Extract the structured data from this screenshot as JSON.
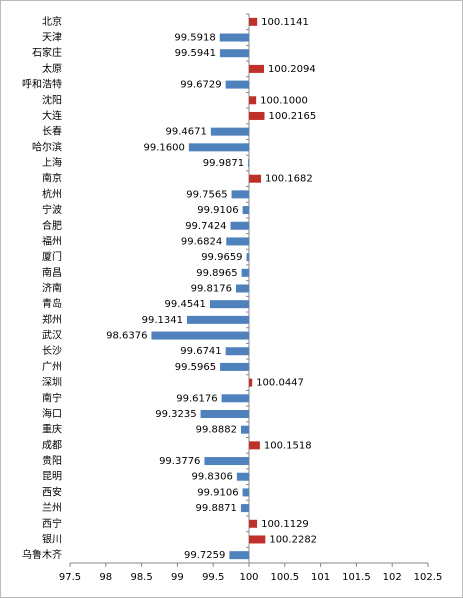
{
  "chart_data": {
    "type": "bar",
    "orientation": "horizontal",
    "base": 100,
    "positive_color": "#c0302a",
    "negative_color": "#4f81bd",
    "categories": [
      "北京",
      "天津",
      "石家庄",
      "太原",
      "呼和浩特",
      "沈阳",
      "大连",
      "长春",
      "哈尔滨",
      "上海",
      "南京",
      "杭州",
      "宁波",
      "合肥",
      "福州",
      "厦门",
      "南昌",
      "济南",
      "青岛",
      "郑州",
      "武汉",
      "长沙",
      "广州",
      "深圳",
      "南宁",
      "海口",
      "重庆",
      "成都",
      "贵阳",
      "昆明",
      "西安",
      "兰州",
      "西宁",
      "银川",
      "乌鲁木齐"
    ],
    "values": [
      100.1141,
      99.5918,
      99.5941,
      100.2094,
      99.6729,
      100.1,
      100.2165,
      99.4671,
      99.16,
      99.9871,
      100.1682,
      99.7565,
      99.9106,
      99.7424,
      99.6824,
      99.9659,
      99.8965,
      99.8176,
      99.4541,
      99.1341,
      98.6376,
      99.6741,
      99.5965,
      100.0447,
      99.6176,
      99.3235,
      99.8882,
      100.1518,
      99.3776,
      99.8306,
      99.9106,
      99.8871,
      100.1129,
      100.2282,
      99.7259
    ],
    "value_labels": [
      "100.1141",
      "99.5918",
      "99.5941",
      "100.2094",
      "99.6729",
      "100.1000",
      "100.2165",
      "99.4671",
      "99.1600",
      "99.9871",
      "100.1682",
      "99.7565",
      "99.9106",
      "99.7424",
      "99.6824",
      "99.9659",
      "99.8965",
      "99.8176",
      "99.4541",
      "99.1341",
      "98.6376",
      "99.6741",
      "99.5965",
      "100.0447",
      "99.6176",
      "99.3235",
      "99.8882",
      "100.1518",
      "99.3776",
      "99.8306",
      "99.9106",
      "99.8871",
      "100.1129",
      "100.2282",
      "99.7259"
    ],
    "xlim": [
      97.5,
      102.5
    ],
    "xticks": [
      97.5,
      98,
      98.5,
      99,
      99.5,
      100,
      100.5,
      101,
      101.5,
      102,
      102.5
    ]
  }
}
